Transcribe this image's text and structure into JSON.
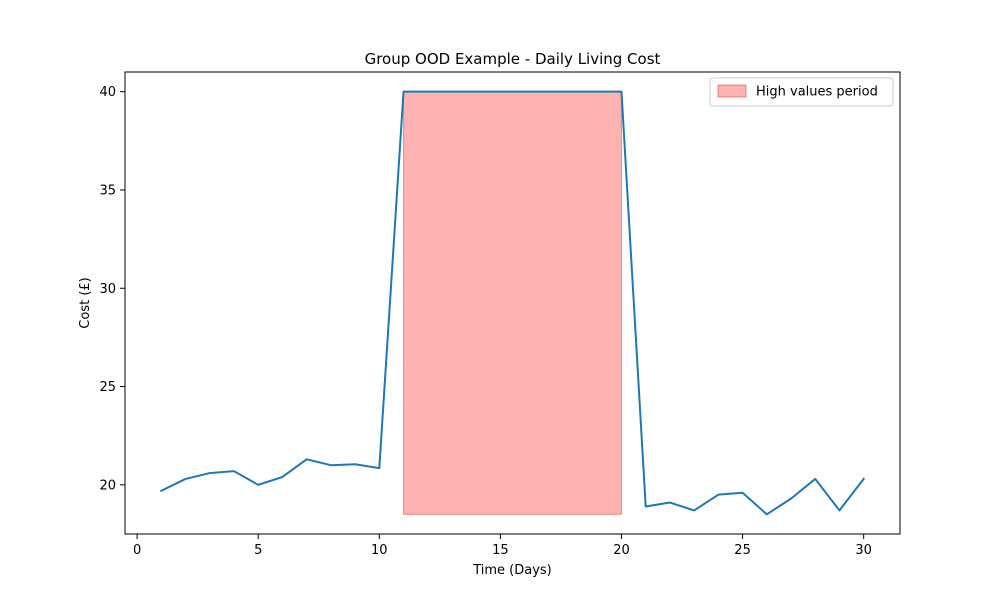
{
  "chart_data": {
    "type": "line",
    "title": "Group OOD Example - Daily Living Cost",
    "xlabel": "Time (Days)",
    "ylabel": "Cost (£)",
    "xlim": [
      -0.5,
      31.5
    ],
    "ylim": [
      17.5,
      41.0
    ],
    "xticks": [
      0,
      5,
      10,
      15,
      20,
      25,
      30
    ],
    "yticks": [
      20,
      25,
      30,
      35,
      40
    ],
    "grid": false,
    "series": [
      {
        "x": [
          1,
          2,
          3,
          4,
          5,
          6,
          7,
          8,
          9,
          10,
          11,
          12,
          13,
          14,
          15,
          16,
          17,
          18,
          19,
          20,
          21,
          22,
          23,
          24,
          25,
          26,
          27,
          28,
          29,
          30
        ],
        "values": [
          19.7,
          20.3,
          20.6,
          20.7,
          20.0,
          20.4,
          21.3,
          21.0,
          21.05,
          20.85,
          40.0,
          40.0,
          40.0,
          40.0,
          40.0,
          40.0,
          40.0,
          40.0,
          40.0,
          40.0,
          18.9,
          19.1,
          18.7,
          19.5,
          19.6,
          18.5,
          19.3,
          20.3,
          18.7,
          20.3
        ],
        "color": "#1f77b4"
      }
    ],
    "shaded_region": {
      "label": "High values period",
      "x_start": 11,
      "x_end": 20,
      "y_bottom": 18.5,
      "y_top": 40.0,
      "color": "#ff0000",
      "alpha": 0.3
    },
    "legend": {
      "placement": "top-right",
      "entries": [
        "High values period"
      ]
    }
  }
}
